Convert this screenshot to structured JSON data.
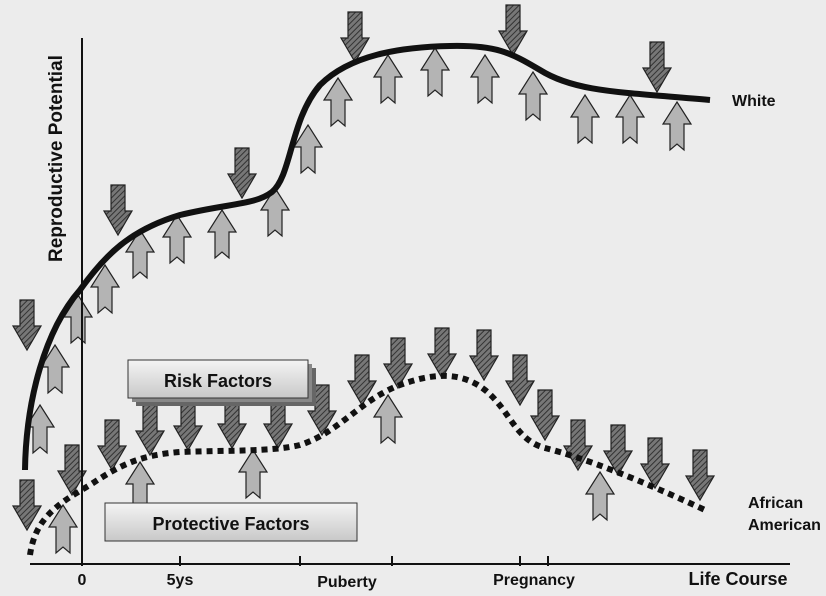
{
  "y_axis_label": "Reproductive Potential",
  "x_axis": {
    "ticks": [
      "0",
      "5ys",
      "Puberty",
      "Pregnancy"
    ],
    "label": "Life Course"
  },
  "curves": {
    "white": "White",
    "african_american": [
      "African",
      "American"
    ]
  },
  "legend": {
    "risk": "Risk Factors",
    "protective": "Protective Factors"
  }
}
